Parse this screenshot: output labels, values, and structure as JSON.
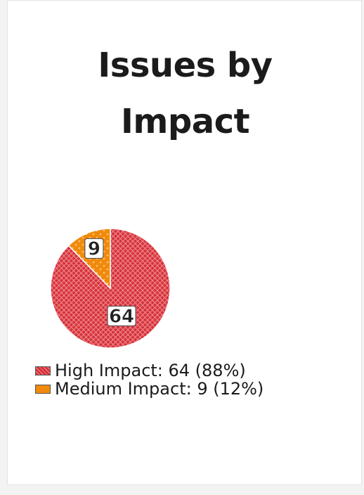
{
  "chart_data": {
    "type": "pie",
    "title": "Issues by Impact",
    "title_lines": [
      "Issues by",
      "Impact"
    ],
    "slices": [
      {
        "name": "High Impact",
        "value": 64,
        "percent": "88%",
        "color": "#d6323a",
        "label": "64",
        "legend": "High Impact: 64 (88%)"
      },
      {
        "name": "Medium Impact",
        "value": 9,
        "percent": "12%",
        "color": "#f08a0c",
        "label": "9",
        "legend": "Medium Impact: 9 (12%)"
      }
    ],
    "legend_position": "bottom-left"
  }
}
